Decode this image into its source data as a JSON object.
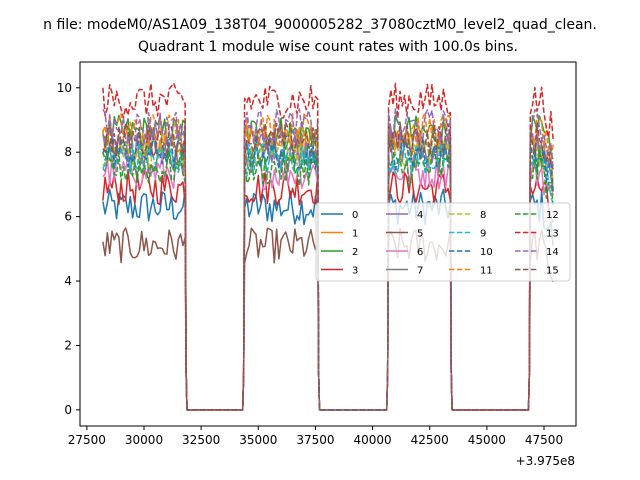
{
  "chart_data": {
    "type": "line",
    "suptitle": "n file: modeM0/AS1A09_138T04_9000005282_37080cztM0_level2_quad_clean.",
    "title": "Quadrant 1 module wise count rates with 100.0s bins.",
    "xlabel": "",
    "ylabel": "",
    "x_offset_label": "+3.975e8",
    "xlim": [
      27200,
      48900
    ],
    "ylim": [
      -0.5,
      10.8
    ],
    "xticks": [
      27500,
      30000,
      32500,
      35000,
      37500,
      40000,
      42500,
      45000,
      47500
    ],
    "yticks": [
      0,
      2,
      4,
      6,
      8,
      10
    ],
    "legend": {
      "position": "center-right",
      "ncol": 4
    },
    "segments": [
      [
        28200,
        31800
      ],
      [
        34400,
        37600
      ],
      [
        40700,
        43400
      ],
      [
        46900,
        47900
      ]
    ],
    "gaps": [
      [
        31800,
        34400
      ],
      [
        37600,
        40700
      ],
      [
        43400,
        46900
      ]
    ],
    "series": [
      {
        "name": "0",
        "level": 6.3,
        "color": "#1f77b4",
        "dash": "solid"
      },
      {
        "name": "1",
        "level": 8.3,
        "color": "#ff7f0e",
        "dash": "solid"
      },
      {
        "name": "2",
        "level": 8.6,
        "color": "#2ca02c",
        "dash": "solid"
      },
      {
        "name": "3",
        "level": 6.9,
        "color": "#d62728",
        "dash": "solid"
      },
      {
        "name": "4",
        "level": 8.2,
        "color": "#9467bd",
        "dash": "solid"
      },
      {
        "name": "5",
        "level": 5.1,
        "color": "#8c564b",
        "dash": "solid"
      },
      {
        "name": "6",
        "level": 7.4,
        "color": "#e377c2",
        "dash": "solid"
      },
      {
        "name": "7",
        "level": 7.9,
        "color": "#7f7f7f",
        "dash": "solid"
      },
      {
        "name": "8",
        "level": 8.1,
        "color": "#bcbd22",
        "dash": "dashed"
      },
      {
        "name": "9",
        "level": 7.8,
        "color": "#17becf",
        "dash": "dashed"
      },
      {
        "name": "10",
        "level": 8.0,
        "color": "#1f77b4",
        "dash": "dashed"
      },
      {
        "name": "11",
        "level": 8.7,
        "color": "#ff7f0e",
        "dash": "dashed"
      },
      {
        "name": "12",
        "level": 7.5,
        "color": "#2ca02c",
        "dash": "dashed"
      },
      {
        "name": "13",
        "level": 9.6,
        "color": "#d62728",
        "dash": "dashed"
      },
      {
        "name": "14",
        "level": 8.8,
        "color": "#9467bd",
        "dash": "dashed"
      },
      {
        "name": "15",
        "level": 8.4,
        "color": "#8c564b",
        "dash": "dashed"
      }
    ]
  }
}
